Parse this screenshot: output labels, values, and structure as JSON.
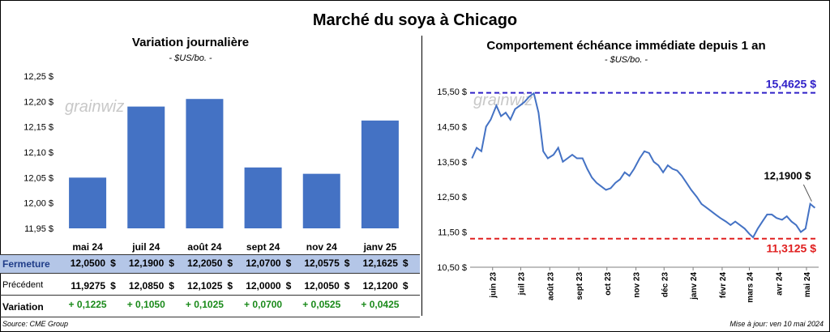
{
  "title": "Marché du soya à Chicago",
  "left": {
    "title": "Variation journalière",
    "subtitle": "- $US/bo. -",
    "watermark": "grainwiz",
    "chart_data": {
      "type": "bar",
      "categories": [
        "mai 24",
        "juil 24",
        "août 24",
        "sept 24",
        "nov 24",
        "janv 25"
      ],
      "values": [
        12.05,
        12.19,
        12.205,
        12.07,
        12.0575,
        12.1625
      ],
      "ylim": [
        11.95,
        12.25
      ],
      "yticks": [
        "12,25 $",
        "12,20 $",
        "12,15 $",
        "12,10 $",
        "12,05 $",
        "12,00 $",
        "11,95 $"
      ],
      "ytick_values": [
        12.25,
        12.2,
        12.15,
        12.1,
        12.05,
        12.0,
        11.95
      ],
      "color": "#4472c4"
    },
    "table": {
      "fermeture_label": "Fermeture",
      "precedent_label": "Précédent",
      "variation_label": "Variation",
      "fermeture": [
        "12,0500",
        "12,1900",
        "12,2050",
        "12,0700",
        "12,0575",
        "12,1625"
      ],
      "precedent": [
        "11,9275",
        "12,0850",
        "12,1025",
        "12,0000",
        "12,0050",
        "12,1200"
      ],
      "variation": [
        "+ 0,1225",
        "+ 0,1050",
        "+ 0,1025",
        "+ 0,0700",
        "+ 0,0525",
        "+ 0,0425"
      ],
      "currency": "$",
      "variation_color": "#1a8a1a",
      "fermeture_bg": "#b4c6e7"
    }
  },
  "right": {
    "title": "Comportement  échéance immédiate depuis 1 an",
    "subtitle": "- $US/bo. -",
    "watermark": "grainwiz",
    "chart_data": {
      "type": "line",
      "ylim": [
        10.5,
        15.8
      ],
      "yticks": [
        "15,50 $",
        "14,50 $",
        "13,50 $",
        "12,50 $",
        "11,50 $",
        "10,50 $"
      ],
      "ytick_values": [
        15.5,
        14.5,
        13.5,
        12.5,
        11.5,
        10.5
      ],
      "x_labels": [
        "juin 23",
        "juil 23",
        "août 23",
        "sept 23",
        "oct 23",
        "nov 23",
        "déc 23",
        "janv 24",
        "févr 24",
        "mars 24",
        "avr 24",
        "mai 24"
      ],
      "line_color": "#4472c4",
      "series": [
        {
          "x": [
            "2023-05-10",
            "2023-05-15",
            "2023-05-20",
            "2023-05-25",
            "2023-05-30",
            "2023-06-05",
            "2023-06-10",
            "2023-06-15",
            "2023-06-20",
            "2023-06-25",
            "2023-06-30",
            "2023-07-05",
            "2023-07-10",
            "2023-07-15",
            "2023-07-20",
            "2023-07-25",
            "2023-07-30",
            "2023-08-05",
            "2023-08-10",
            "2023-08-15",
            "2023-08-20",
            "2023-08-25",
            "2023-08-30",
            "2023-09-05",
            "2023-09-10",
            "2023-09-15",
            "2023-09-20",
            "2023-09-25",
            "2023-09-30",
            "2023-10-05",
            "2023-10-10",
            "2023-10-15",
            "2023-10-20",
            "2023-10-25",
            "2023-10-30",
            "2023-11-05",
            "2023-11-10",
            "2023-11-15",
            "2023-11-20",
            "2023-11-25",
            "2023-11-30",
            "2023-12-05",
            "2023-12-10",
            "2023-12-15",
            "2023-12-20",
            "2023-12-25",
            "2023-12-30",
            "2024-01-05",
            "2024-01-10",
            "2024-01-15",
            "2024-01-20",
            "2024-01-25",
            "2024-01-30",
            "2024-02-05",
            "2024-02-10",
            "2024-02-15",
            "2024-02-20",
            "2024-02-25",
            "2024-03-01",
            "2024-03-05",
            "2024-03-10",
            "2024-03-15",
            "2024-03-20",
            "2024-03-25",
            "2024-03-30",
            "2024-04-05",
            "2024-04-10",
            "2024-04-15",
            "2024-04-20",
            "2024-04-25",
            "2024-04-30",
            "2024-05-05",
            "2024-05-10"
          ],
          "y": [
            13.6,
            13.9,
            13.8,
            14.5,
            14.7,
            15.1,
            14.8,
            14.9,
            14.7,
            15.0,
            15.1,
            15.2,
            15.35,
            15.45,
            14.9,
            13.8,
            13.6,
            13.7,
            13.9,
            13.5,
            13.6,
            13.7,
            13.6,
            13.6,
            13.3,
            13.05,
            12.9,
            12.8,
            12.7,
            12.75,
            12.9,
            13.0,
            13.2,
            13.1,
            13.3,
            13.6,
            13.8,
            13.75,
            13.5,
            13.4,
            13.2,
            13.4,
            13.3,
            13.25,
            13.1,
            12.9,
            12.7,
            12.5,
            12.3,
            12.2,
            12.1,
            12.0,
            11.9,
            11.8,
            11.7,
            11.8,
            11.7,
            11.6,
            11.45,
            11.35,
            11.6,
            11.8,
            12.0,
            12.0,
            11.9,
            11.85,
            11.95,
            11.8,
            11.7,
            11.5,
            11.6,
            12.3,
            12.19
          ]
        }
      ],
      "hlines": [
        {
          "label": "15,4625 $",
          "value": 15.4625,
          "color": "#2f20c8"
        },
        {
          "label": "11,3125 $",
          "value": 11.3125,
          "color": "#e02020"
        }
      ],
      "last_label": "12,1900 $"
    }
  },
  "footer": {
    "source": "Source: CME Group",
    "update": "Mise à jour: ven 10 mai 2024"
  }
}
